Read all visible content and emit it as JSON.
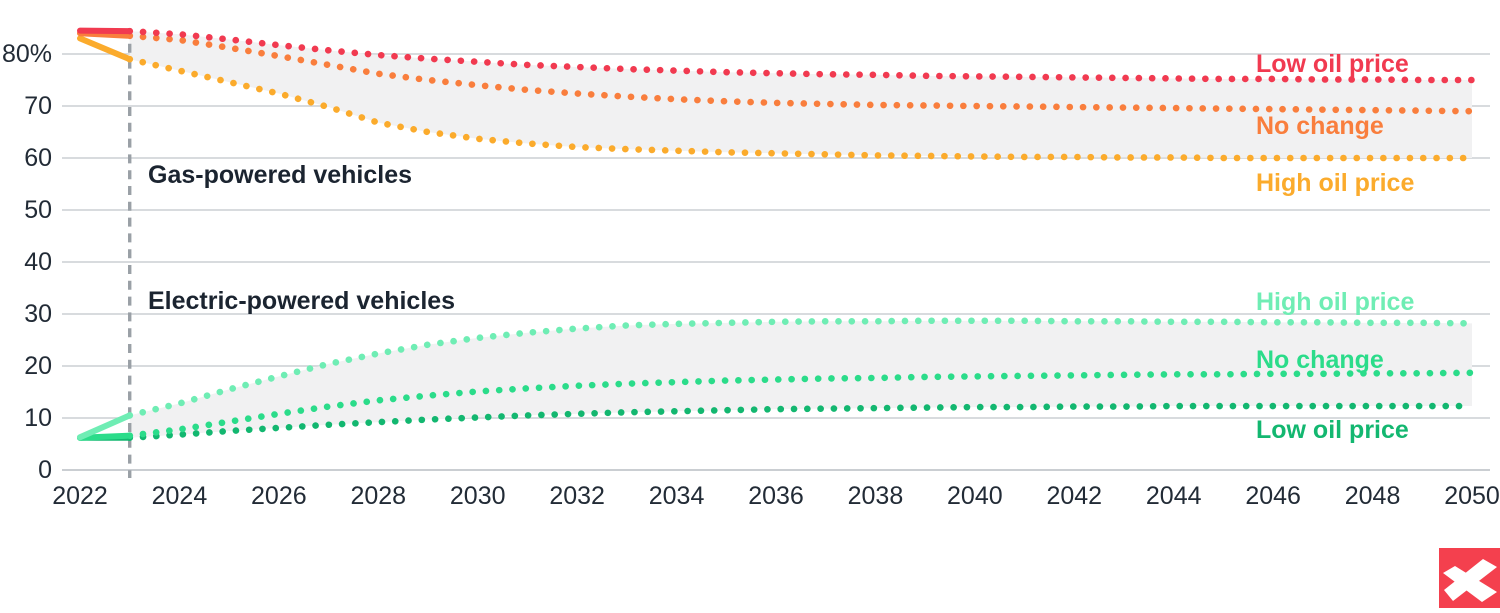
{
  "chart": {
    "y_axis": {
      "ticks": [
        {
          "value": 0,
          "label": "0"
        },
        {
          "value": 10,
          "label": "10"
        },
        {
          "value": 20,
          "label": "20"
        },
        {
          "value": 30,
          "label": "30"
        },
        {
          "value": 40,
          "label": "40"
        },
        {
          "value": 50,
          "label": "50"
        },
        {
          "value": 60,
          "label": "60"
        },
        {
          "value": 70,
          "label": "70"
        },
        {
          "value": 80,
          "label": "80%"
        }
      ]
    },
    "x_axis": {
      "ticks": [
        {
          "year": 2022,
          "label": "2022"
        },
        {
          "year": 2024,
          "label": "2024"
        },
        {
          "year": 2026,
          "label": "2026"
        },
        {
          "year": 2028,
          "label": "2028"
        },
        {
          "year": 2030,
          "label": "2030"
        },
        {
          "year": 2032,
          "label": "2032"
        },
        {
          "year": 2034,
          "label": "2034"
        },
        {
          "year": 2036,
          "label": "2036"
        },
        {
          "year": 2038,
          "label": "2038"
        },
        {
          "year": 2040,
          "label": "2040"
        },
        {
          "year": 2042,
          "label": "2042"
        },
        {
          "year": 2044,
          "label": "2044"
        },
        {
          "year": 2046,
          "label": "2046"
        },
        {
          "year": 2048,
          "label": "2048"
        },
        {
          "year": 2050,
          "label": "2050"
        }
      ]
    },
    "section_labels": {
      "gas": "Gas-powered vehicles",
      "electric": "Electric-powered vehicles"
    },
    "forecast_start_year": 2023,
    "colors": {
      "gridline": "#cbcfd3",
      "zero_line": "#b9bec4",
      "dashed_line": "#9aa0a6",
      "band_fill": "#f1f1f2",
      "axis_text": "#222b36"
    }
  },
  "chart_data": {
    "type": "line",
    "title": "",
    "xlabel": "",
    "ylabel": "",
    "xlim": [
      2022,
      2050
    ],
    "ylim": [
      0,
      88
    ],
    "grid": "horizontal",
    "legend_position": "inline-right",
    "annotations": [
      "Gas-powered vehicles",
      "Electric-powered vehicles"
    ],
    "x": [
      2022,
      2023,
      2024,
      2025,
      2026,
      2027,
      2028,
      2029,
      2030,
      2031,
      2032,
      2033,
      2034,
      2035,
      2036,
      2037,
      2038,
      2039,
      2040,
      2041,
      2042,
      2043,
      2044,
      2045,
      2046,
      2047,
      2048,
      2049,
      2050
    ],
    "series": [
      {
        "group": "Gas-powered vehicles",
        "label": "Low oil price",
        "color": "#F13A50",
        "line_style": "solid-then-dotted",
        "values": [
          84.5,
          84.4,
          83.8,
          82.8,
          81.7,
          80.7,
          79.8,
          79.1,
          78.5,
          77.9,
          77.5,
          77.1,
          76.8,
          76.5,
          76.3,
          76.1,
          76.0,
          75.8,
          75.7,
          75.6,
          75.5,
          75.4,
          75.3,
          75.2,
          75.2,
          75.1,
          75.1,
          75.0,
          75.0
        ]
      },
      {
        "group": "Gas-powered vehicles",
        "label": "No change",
        "color": "#F97E3D",
        "line_style": "solid-then-dotted",
        "values": [
          84.0,
          83.5,
          82.7,
          81.2,
          79.6,
          77.9,
          76.2,
          75.0,
          74.0,
          73.1,
          72.4,
          71.8,
          71.3,
          70.9,
          70.6,
          70.4,
          70.2,
          70.1,
          70.0,
          69.9,
          69.8,
          69.7,
          69.6,
          69.5,
          69.4,
          69.3,
          69.2,
          69.1,
          69.0
        ]
      },
      {
        "group": "Gas-powered vehicles",
        "label": "High oil price",
        "color": "#FBAB2C",
        "line_style": "solid-then-dotted",
        "values": [
          83.0,
          79.0,
          76.8,
          74.6,
          72.4,
          69.8,
          66.8,
          65.0,
          63.7,
          62.8,
          62.1,
          61.7,
          61.4,
          61.1,
          60.9,
          60.7,
          60.5,
          60.4,
          60.3,
          60.2,
          60.2,
          60.1,
          60.1,
          60.0,
          60.0,
          60.0,
          60.0,
          60.0,
          60.0
        ]
      },
      {
        "group": "Electric-powered vehicles",
        "label": "High oil price",
        "color": "#6FEDB4",
        "line_style": "solid-then-dotted",
        "values": [
          6.3,
          10.5,
          12.8,
          15.5,
          18.0,
          20.4,
          22.4,
          24.1,
          25.4,
          26.4,
          27.2,
          27.8,
          28.1,
          28.3,
          28.5,
          28.6,
          28.6,
          28.7,
          28.7,
          28.7,
          28.6,
          28.6,
          28.5,
          28.5,
          28.4,
          28.4,
          28.3,
          28.3,
          28.2
        ]
      },
      {
        "group": "Electric-powered vehicles",
        "label": "No change",
        "color": "#2BDC8A",
        "line_style": "solid-then-dotted",
        "values": [
          6.2,
          6.6,
          7.8,
          9.3,
          10.8,
          12.2,
          13.4,
          14.3,
          15.1,
          15.7,
          16.2,
          16.6,
          16.9,
          17.2,
          17.4,
          17.6,
          17.7,
          17.9,
          18.0,
          18.1,
          18.2,
          18.3,
          18.4,
          18.4,
          18.5,
          18.5,
          18.6,
          18.6,
          18.7
        ]
      },
      {
        "group": "Electric-powered vehicles",
        "label": "Low oil price",
        "color": "#13B770",
        "line_style": "solid-then-dotted",
        "values": [
          6.2,
          6.2,
          6.8,
          7.5,
          8.1,
          8.7,
          9.2,
          9.7,
          10.1,
          10.5,
          10.8,
          11.1,
          11.3,
          11.5,
          11.7,
          11.8,
          11.9,
          12.0,
          12.1,
          12.1,
          12.2,
          12.2,
          12.3,
          12.3,
          12.3,
          12.3,
          12.3,
          12.3,
          12.3
        ]
      }
    ],
    "bands": [
      {
        "between_series": [
          0,
          2
        ],
        "group": "Gas-powered vehicles"
      },
      {
        "between_series": [
          3,
          5
        ],
        "group": "Electric-powered vehicles"
      }
    ]
  },
  "branding": {
    "logo_name": "xtb-logo",
    "logo_color": "#F4404E",
    "logo_glyph_color": "#ffffff"
  }
}
